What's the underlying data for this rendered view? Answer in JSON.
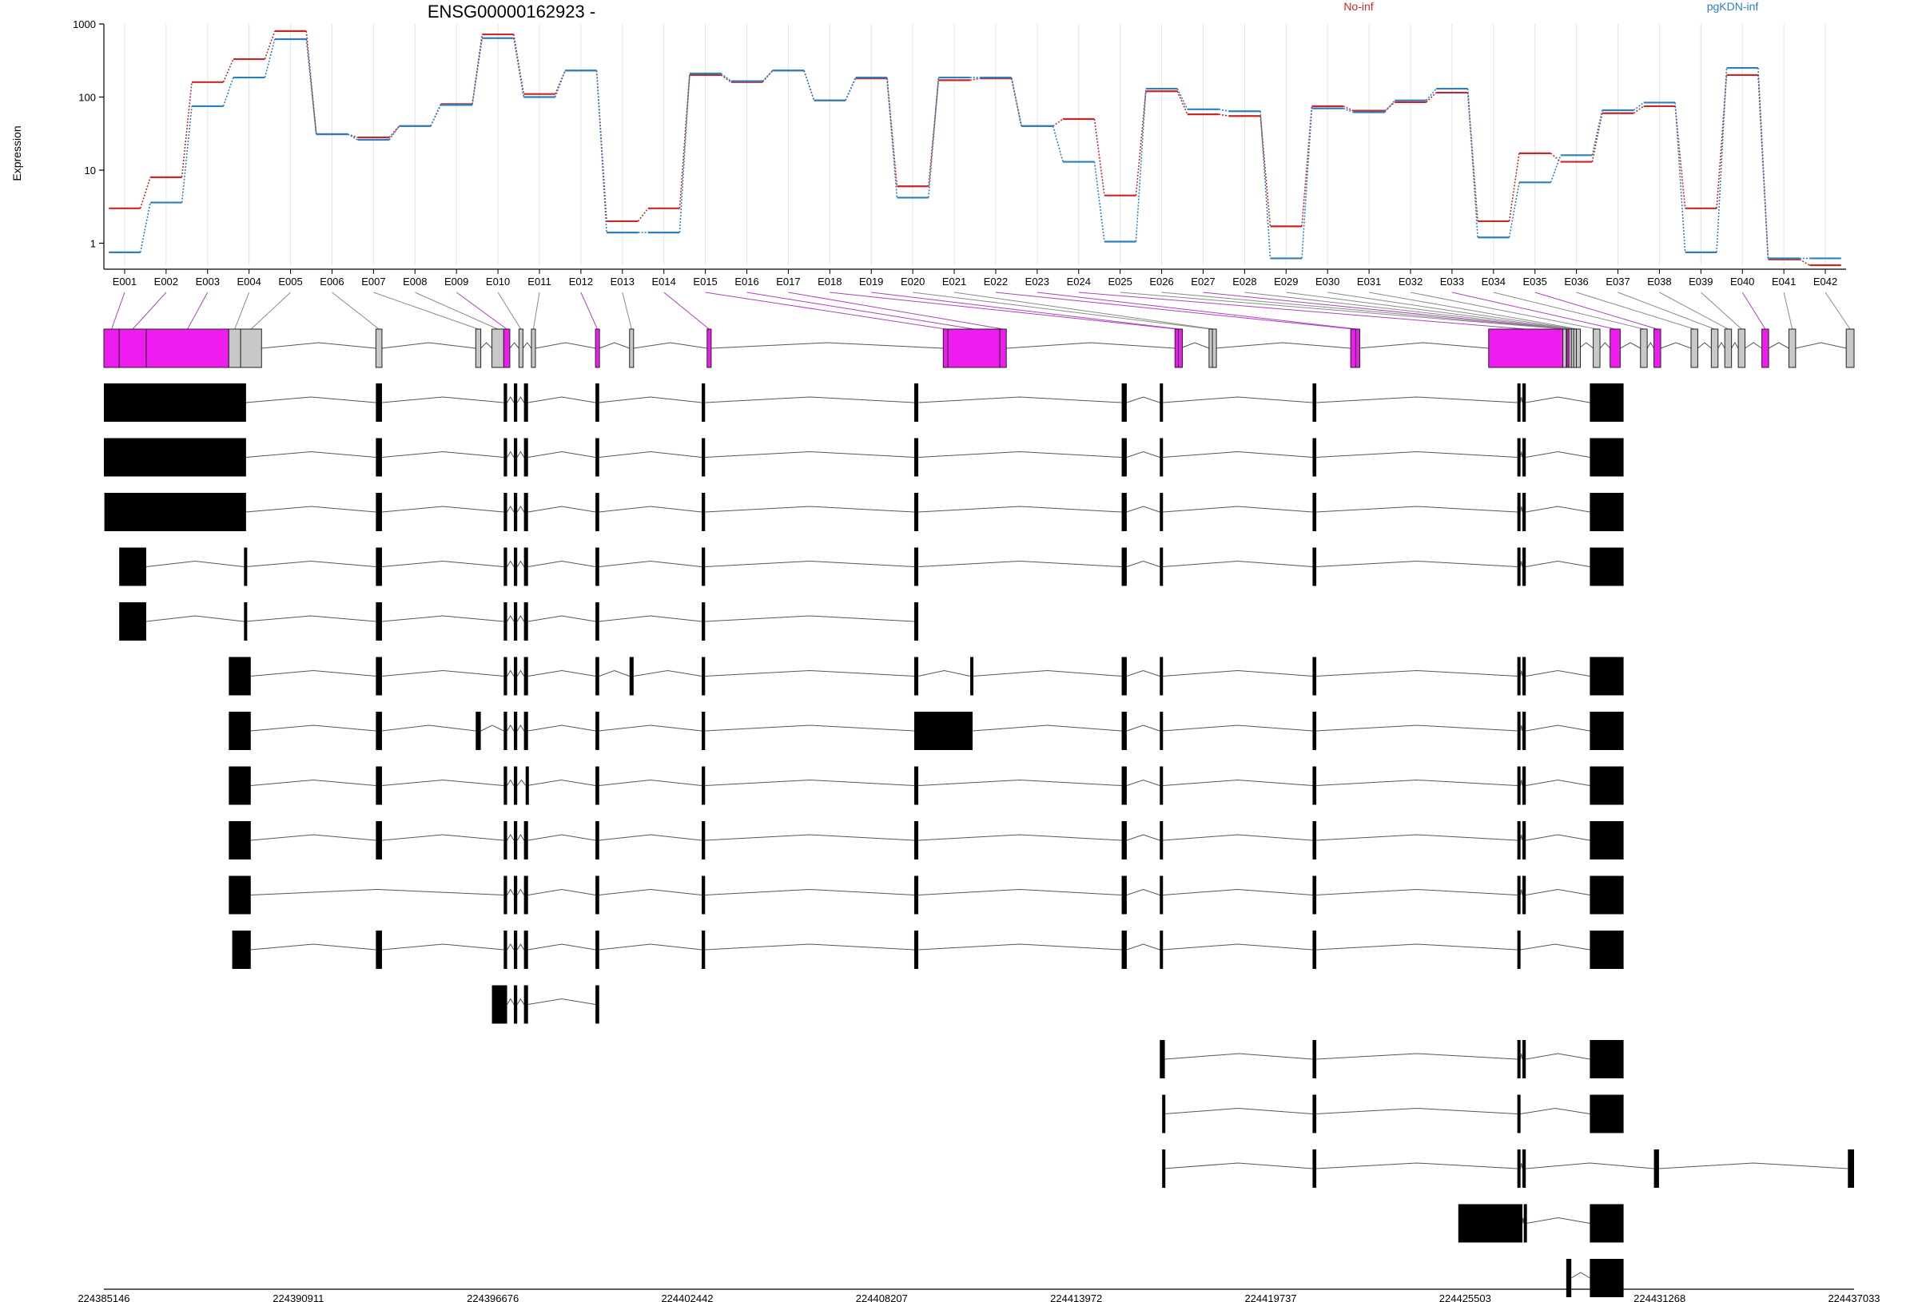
{
  "title": "ENSG00000162923 -",
  "ylabel": "Expression",
  "legend": [
    {
      "label": "No-inf",
      "color": "#c62828"
    },
    {
      "label": "pgKDN-inf",
      "color": "#2e7fc0"
    }
  ],
  "colors": {
    "sig": "#ee1cee",
    "nonsig": "#c8c8c8",
    "exon": "#000000",
    "intron": "#555555"
  },
  "chart_data": {
    "type": "line",
    "title": "ENSG00000162923 -",
    "ylabel": "Expression",
    "yscale": "log",
    "ylim": [
      0.5,
      1000
    ],
    "yticks": [
      {
        "v": 1,
        "label": "1"
      },
      {
        "v": 10,
        "label": "10"
      },
      {
        "v": 100,
        "label": "100"
      },
      {
        "v": 1000,
        "label": "1000"
      }
    ],
    "categories": [
      "E001",
      "E002",
      "E003",
      "E004",
      "E005",
      "E006",
      "E007",
      "E008",
      "E009",
      "E010",
      "E011",
      "E012",
      "E013",
      "E014",
      "E015",
      "E016",
      "E017",
      "E018",
      "E019",
      "E020",
      "E021",
      "E022",
      "E023",
      "E024",
      "E025",
      "E026",
      "E027",
      "E028",
      "E029",
      "E030",
      "E031",
      "E032",
      "E033",
      "E034",
      "E035",
      "E036",
      "E037",
      "E038",
      "E039",
      "E040",
      "E041",
      "E042"
    ],
    "series": [
      {
        "name": "No-inf",
        "color": "#c62828",
        "values": [
          3,
          8,
          160,
          330,
          800,
          31,
          28,
          40,
          80,
          720,
          110,
          230,
          2,
          3,
          200,
          160,
          230,
          90,
          180,
          6,
          170,
          180,
          40,
          50,
          4.5,
          120,
          58,
          55,
          1.7,
          75,
          65,
          85,
          115,
          2,
          17,
          13,
          60,
          75,
          3,
          200,
          0.6,
          0.5
        ]
      },
      {
        "name": "pgKDN-inf",
        "color": "#2e7fc0",
        "values": [
          0.75,
          3.6,
          75,
          185,
          620,
          31,
          26,
          40,
          78,
          640,
          100,
          230,
          1.4,
          1.4,
          210,
          165,
          230,
          90,
          185,
          4.2,
          185,
          185,
          40,
          13,
          1.05,
          130,
          68,
          64,
          0.62,
          70,
          62,
          90,
          130,
          1.2,
          6.8,
          16,
          66,
          84,
          0.75,
          250,
          0.62,
          0.62
        ]
      }
    ],
    "genomic_axis": {
      "range": [
        224385146,
        224437033
      ],
      "ticks": [
        "224385146",
        "224390911",
        "224396676",
        "224402442",
        "224408207",
        "224413972",
        "224419737",
        "224425503",
        "224431268",
        "224437033"
      ]
    },
    "exon_bins": [
      {
        "id": "E001",
        "start": 224385146,
        "end": 224385600,
        "sig": true
      },
      {
        "id": "E002",
        "start": 224385600,
        "end": 224386400,
        "sig": true
      },
      {
        "id": "E003",
        "start": 224386400,
        "end": 224388850,
        "sig": true
      },
      {
        "id": "E004",
        "start": 224388850,
        "end": 224389200,
        "sig": false
      },
      {
        "id": "E005",
        "start": 224389200,
        "end": 224389820,
        "sig": false
      },
      {
        "id": "E006",
        "start": 224393210,
        "end": 224393390,
        "sig": false
      },
      {
        "id": "E007",
        "start": 224396170,
        "end": 224396320,
        "sig": false
      },
      {
        "id": "E008",
        "start": 224396650,
        "end": 224397000,
        "sig": false
      },
      {
        "id": "E009",
        "start": 224397000,
        "end": 224397180,
        "sig": true
      },
      {
        "id": "E010",
        "start": 224397450,
        "end": 224397570,
        "sig": false
      },
      {
        "id": "E011",
        "start": 224397820,
        "end": 224397940,
        "sig": false
      },
      {
        "id": "E012",
        "start": 224399720,
        "end": 224399830,
        "sig": true
      },
      {
        "id": "E013",
        "start": 224400730,
        "end": 224400850,
        "sig": false
      },
      {
        "id": "E014",
        "start": 224403030,
        "end": 224403150,
        "sig": true
      },
      {
        "id": "E015",
        "start": 224410030,
        "end": 224410170,
        "sig": true
      },
      {
        "id": "E016",
        "start": 224410170,
        "end": 224411710,
        "sig": true
      },
      {
        "id": "E017",
        "start": 224411710,
        "end": 224411900,
        "sig": true
      },
      {
        "id": "E018",
        "start": 224416900,
        "end": 224417000,
        "sig": true
      },
      {
        "id": "E019",
        "start": 224417000,
        "end": 224417060,
        "sig": true
      },
      {
        "id": "E020",
        "start": 224417910,
        "end": 224418010,
        "sig": false
      },
      {
        "id": "E021",
        "start": 224418010,
        "end": 224418080,
        "sig": false
      },
      {
        "id": "E022",
        "start": 224422110,
        "end": 224422260,
        "sig": true
      },
      {
        "id": "E023",
        "start": 224422260,
        "end": 224422330,
        "sig": true
      },
      {
        "id": "E024",
        "start": 224426200,
        "end": 224428400,
        "sig": true
      },
      {
        "id": "E025",
        "start": 224428400,
        "end": 224428500,
        "sig": false
      },
      {
        "id": "E026",
        "start": 224428500,
        "end": 224428520,
        "sig": false
      },
      {
        "id": "E027",
        "start": 224428520,
        "end": 224428580,
        "sig": true
      },
      {
        "id": "E028",
        "start": 224428580,
        "end": 224428650,
        "sig": false
      },
      {
        "id": "E029",
        "start": 224428650,
        "end": 224428720,
        "sig": false
      },
      {
        "id": "E030",
        "start": 224428720,
        "end": 224428800,
        "sig": false
      },
      {
        "id": "E031",
        "start": 224428800,
        "end": 224428880,
        "sig": false
      },
      {
        "id": "E032",
        "start": 224429300,
        "end": 224429500,
        "sig": false
      },
      {
        "id": "E033",
        "start": 224429800,
        "end": 224430100,
        "sig": true
      },
      {
        "id": "E034",
        "start": 224430700,
        "end": 224430900,
        "sig": false
      },
      {
        "id": "E035",
        "start": 224431100,
        "end": 224431300,
        "sig": true
      },
      {
        "id": "E036",
        "start": 224432200,
        "end": 224432400,
        "sig": false
      },
      {
        "id": "E037",
        "start": 224432800,
        "end": 224433000,
        "sig": false
      },
      {
        "id": "E038",
        "start": 224433200,
        "end": 224433400,
        "sig": false
      },
      {
        "id": "E039",
        "start": 224433600,
        "end": 224433800,
        "sig": false
      },
      {
        "id": "E040",
        "start": 224434300,
        "end": 224434500,
        "sig": true
      },
      {
        "id": "E041",
        "start": 224435100,
        "end": 224435300,
        "sig": false
      },
      {
        "id": "E042",
        "start": 224436800,
        "end": 224437033,
        "sig": false
      }
    ],
    "transcripts": [
      [
        [
          224385146,
          224389360
        ],
        [
          224393210,
          224393390
        ],
        [
          224397000,
          224397100
        ],
        [
          224397300,
          224397400
        ],
        [
          224397600,
          224397720
        ],
        [
          224399720,
          224399830
        ],
        [
          224402870,
          224402970
        ],
        [
          224409170,
          224409290
        ],
        [
          224415320,
          224415470
        ],
        [
          224416450,
          224416540
        ],
        [
          224420980,
          224421090
        ],
        [
          224427050,
          224427140
        ],
        [
          224427200,
          224427300
        ],
        [
          224429200,
          224430200
        ]
      ],
      [
        [
          224385146,
          224389360
        ],
        [
          224393210,
          224393390
        ],
        [
          224397000,
          224397100
        ],
        [
          224397300,
          224397400
        ],
        [
          224397600,
          224397720
        ],
        [
          224399720,
          224399830
        ],
        [
          224402870,
          224402970
        ],
        [
          224409170,
          224409290
        ],
        [
          224415320,
          224415470
        ],
        [
          224416450,
          224416540
        ],
        [
          224420980,
          224421090
        ],
        [
          224427050,
          224427140
        ],
        [
          224427200,
          224427300
        ],
        [
          224429200,
          224430200
        ]
      ],
      [
        [
          224385160,
          224389360
        ],
        [
          224393210,
          224393390
        ],
        [
          224397000,
          224397100
        ],
        [
          224397300,
          224397400
        ],
        [
          224397600,
          224397720
        ],
        [
          224399720,
          224399830
        ],
        [
          224402870,
          224402970
        ],
        [
          224409170,
          224409290
        ],
        [
          224415320,
          224415470
        ],
        [
          224416450,
          224416540
        ],
        [
          224420980,
          224421090
        ],
        [
          224427050,
          224427140
        ],
        [
          224427200,
          224427300
        ],
        [
          224429200,
          224430200
        ]
      ],
      [
        [
          224385600,
          224386400
        ],
        [
          224389300,
          224389350
        ],
        [
          224393210,
          224393390
        ],
        [
          224397000,
          224397100
        ],
        [
          224397300,
          224397400
        ],
        [
          224397600,
          224397720
        ],
        [
          224399720,
          224399830
        ],
        [
          224402870,
          224402970
        ],
        [
          224409170,
          224409290
        ],
        [
          224415320,
          224415470
        ],
        [
          224416450,
          224416540
        ],
        [
          224420980,
          224421090
        ],
        [
          224427050,
          224427140
        ],
        [
          224427200,
          224427300
        ],
        [
          224429200,
          224430200
        ]
      ],
      [
        [
          224385600,
          224386400
        ],
        [
          224389300,
          224389350
        ],
        [
          224393210,
          224393390
        ],
        [
          224397000,
          224397100
        ],
        [
          224397300,
          224397400
        ],
        [
          224397600,
          224397720
        ],
        [
          224399720,
          224399830
        ],
        [
          224402870,
          224402970
        ],
        [
          224409170,
          224409290
        ]
      ],
      [
        [
          224388850,
          224389500
        ],
        [
          224393210,
          224393390
        ],
        [
          224397000,
          224397100
        ],
        [
          224397300,
          224397400
        ],
        [
          224397600,
          224397720
        ],
        [
          224399720,
          224399830
        ],
        [
          224400730,
          224400850
        ],
        [
          224402870,
          224402970
        ],
        [
          224409170,
          224409290
        ],
        [
          224410830,
          224410900
        ],
        [
          224415320,
          224415470
        ],
        [
          224416450,
          224416540
        ],
        [
          224420980,
          224421090
        ],
        [
          224427050,
          224427140
        ],
        [
          224427200,
          224427300
        ],
        [
          224429200,
          224430200
        ]
      ],
      [
        [
          224388850,
          224389500
        ],
        [
          224393210,
          224393390
        ],
        [
          224396170,
          224396320
        ],
        [
          224397000,
          224397100
        ],
        [
          224397300,
          224397400
        ],
        [
          224397600,
          224397720
        ],
        [
          224399720,
          224399830
        ],
        [
          224402870,
          224402970
        ],
        [
          224409170,
          224410900
        ],
        [
          224415320,
          224415470
        ],
        [
          224416450,
          224416540
        ],
        [
          224420980,
          224421090
        ],
        [
          224427050,
          224427140
        ],
        [
          224427200,
          224427300
        ],
        [
          224429200,
          224430200
        ]
      ],
      [
        [
          224388850,
          224389500
        ],
        [
          224393210,
          224393390
        ],
        [
          224397000,
          224397100
        ],
        [
          224397300,
          224397400
        ],
        [
          224397650,
          224397690
        ],
        [
          224399720,
          224399830
        ],
        [
          224402870,
          224402970
        ],
        [
          224409170,
          224409290
        ],
        [
          224415320,
          224415470
        ],
        [
          224416450,
          224416540
        ],
        [
          224420980,
          224421090
        ],
        [
          224427050,
          224427140
        ],
        [
          224427200,
          224427300
        ],
        [
          224429200,
          224430200
        ]
      ],
      [
        [
          224388850,
          224389500
        ],
        [
          224393210,
          224393390
        ],
        [
          224397000,
          224397100
        ],
        [
          224397300,
          224397400
        ],
        [
          224397600,
          224397720
        ],
        [
          224399720,
          224399830
        ],
        [
          224402870,
          224402970
        ],
        [
          224409170,
          224409290
        ],
        [
          224415320,
          224415470
        ],
        [
          224416450,
          224416540
        ],
        [
          224420980,
          224421090
        ],
        [
          224427050,
          224427140
        ],
        [
          224427200,
          224427300
        ],
        [
          224429200,
          224430200
        ]
      ],
      [
        [
          224388850,
          224389500
        ],
        [
          224397000,
          224397100
        ],
        [
          224397300,
          224397400
        ],
        [
          224397600,
          224397720
        ],
        [
          224399720,
          224399830
        ],
        [
          224402870,
          224402970
        ],
        [
          224409170,
          224409290
        ],
        [
          224415320,
          224415470
        ],
        [
          224416450,
          224416540
        ],
        [
          224420980,
          224421090
        ],
        [
          224427050,
          224427140
        ],
        [
          224427200,
          224427300
        ],
        [
          224429200,
          224430200
        ]
      ],
      [
        [
          224388950,
          224389500
        ],
        [
          224393210,
          224393390
        ],
        [
          224397000,
          224397100
        ],
        [
          224397300,
          224397400
        ],
        [
          224397600,
          224397720
        ],
        [
          224399720,
          224399830
        ],
        [
          224402870,
          224402970
        ],
        [
          224409170,
          224409290
        ],
        [
          224415320,
          224415470
        ],
        [
          224416450,
          224416540
        ],
        [
          224420980,
          224421090
        ],
        [
          224427050,
          224427140
        ],
        [
          224429200,
          224430200
        ]
      ],
      [
        [
          224396650,
          224397100
        ],
        [
          224397300,
          224397400
        ],
        [
          224397600,
          224397720
        ],
        [
          224399720,
          224399830
        ]
      ],
      [
        [
          224416450,
          224416600
        ],
        [
          224420980,
          224421090
        ],
        [
          224427050,
          224427140
        ],
        [
          224427200,
          224427300
        ],
        [
          224429200,
          224430200
        ]
      ],
      [
        [
          224416520,
          224416580
        ],
        [
          224420980,
          224421090
        ],
        [
          224427050,
          224427140
        ],
        [
          224429200,
          224430200
        ]
      ],
      [
        [
          224416520,
          224416560
        ],
        [
          224420980,
          224421090
        ],
        [
          224427050,
          224427140
        ],
        [
          224427200,
          224427300
        ],
        [
          224431100,
          224431250
        ],
        [
          224436850,
          224437033
        ]
      ],
      [
        [
          224425300,
          224427200
        ],
        [
          224427240,
          224427320
        ],
        [
          224429200,
          224430200
        ]
      ],
      [
        [
          224428500,
          224428650
        ],
        [
          224429200,
          224430200
        ]
      ]
    ]
  }
}
